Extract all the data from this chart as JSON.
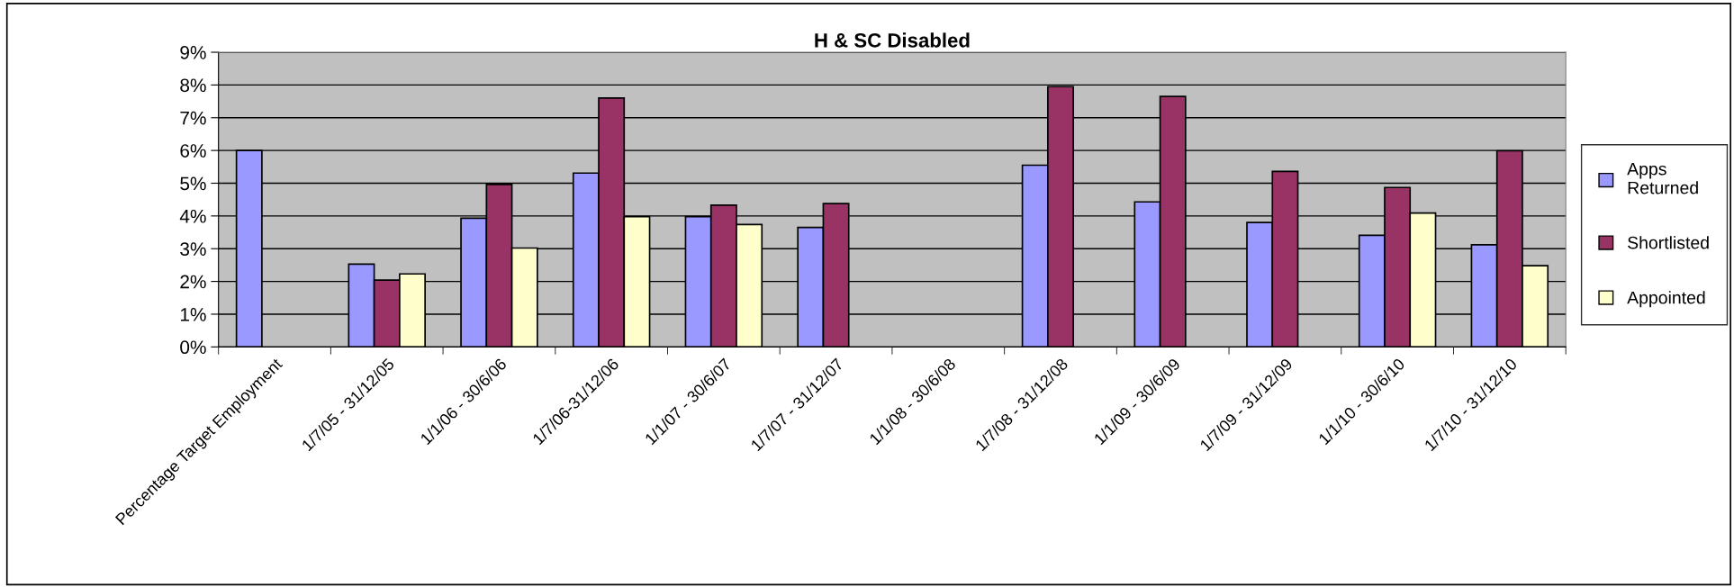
{
  "chart_data": {
    "type": "bar",
    "title": "H & SC Disabled",
    "categories": [
      "Percentage Target Employment",
      "1/7/05 - 31/12/05",
      "1/1/06 - 30/6/06",
      "1/7/06-31/12/06",
      "1/1/07 - 30/6/07",
      "1/7/07 - 31/12/07",
      "1/1/08 - 30/6/08",
      "1/7/08 - 31/12/08",
      "1/1/09 - 30/6/09",
      "1/7/09 - 31/12/09",
      "1/1/10 - 30/6/10",
      "1/7/10 - 31/12/10"
    ],
    "series": [
      {
        "name": "Apps Returned",
        "color": "#9999ff",
        "values": [
          6.0,
          2.53,
          3.93,
          5.31,
          3.98,
          3.65,
          null,
          5.55,
          4.43,
          3.8,
          3.41,
          3.12
        ]
      },
      {
        "name": "Shortlisted",
        "color": "#993366",
        "values": [
          null,
          2.04,
          4.96,
          7.6,
          4.33,
          4.38,
          null,
          7.95,
          7.65,
          5.36,
          4.87,
          5.99
        ]
      },
      {
        "name": "Appointed",
        "color": "#ffffcc",
        "values": [
          null,
          2.23,
          3.02,
          3.98,
          3.74,
          null,
          null,
          null,
          null,
          null,
          4.09,
          2.48
        ]
      }
    ],
    "ylim": [
      0,
      9
    ],
    "yticks": [
      {
        "value": 0,
        "label": "0%"
      },
      {
        "value": 1,
        "label": "1%"
      },
      {
        "value": 2,
        "label": "2%"
      },
      {
        "value": 3,
        "label": "3%"
      },
      {
        "value": 4,
        "label": "4%"
      },
      {
        "value": 5,
        "label": "5%"
      },
      {
        "value": 6,
        "label": "6%"
      },
      {
        "value": 7,
        "label": "7%"
      },
      {
        "value": 8,
        "label": "8%"
      },
      {
        "value": 9,
        "label": "9%"
      }
    ],
    "grid": "y",
    "legend": "right"
  }
}
